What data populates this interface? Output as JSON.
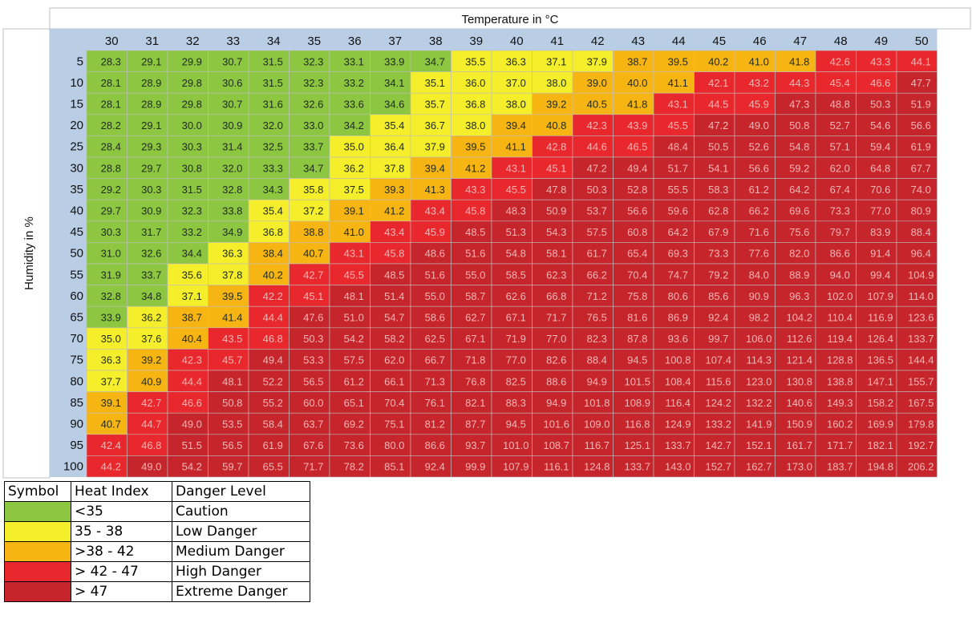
{
  "colors": {
    "green": "#8dc640",
    "yellow": "#f5ee2a",
    "orange": "#f7b514",
    "red": "#e8282c",
    "darkred": "#c6252b",
    "header": "#b9cde5",
    "grid": "#bfbfbf",
    "text_dark": "#1f2a1f",
    "text_light": "#f3b5b5"
  },
  "chart_data": {
    "type": "heatmap",
    "title": "Temperature in °C",
    "ylabel": "Humidity in %",
    "x": [
      30,
      31,
      32,
      33,
      34,
      35,
      36,
      37,
      38,
      39,
      40,
      41,
      42,
      43,
      44,
      45,
      46,
      47,
      48,
      49,
      50
    ],
    "y": [
      5,
      10,
      15,
      20,
      25,
      30,
      35,
      40,
      45,
      50,
      55,
      60,
      65,
      70,
      75,
      80,
      85,
      90,
      95,
      100
    ],
    "values": [
      [
        28.3,
        29.1,
        29.9,
        30.7,
        31.5,
        32.3,
        33.1,
        33.9,
        34.7,
        35.5,
        36.3,
        37.1,
        37.9,
        38.7,
        39.5,
        40.2,
        41.0,
        41.8,
        42.6,
        43.3,
        44.1
      ],
      [
        28.1,
        28.9,
        29.8,
        30.6,
        31.5,
        32.3,
        33.2,
        34.1,
        35.1,
        36.0,
        37.0,
        38.0,
        39.0,
        40.0,
        41.1,
        42.1,
        43.2,
        44.3,
        45.4,
        46.6,
        47.7
      ],
      [
        28.1,
        28.9,
        29.8,
        30.7,
        31.6,
        32.6,
        33.6,
        34.6,
        35.7,
        36.8,
        38.0,
        39.2,
        40.5,
        41.8,
        43.1,
        44.5,
        45.9,
        47.3,
        48.8,
        50.3,
        51.9
      ],
      [
        28.2,
        29.1,
        30.0,
        30.9,
        32.0,
        33.0,
        34.2,
        35.4,
        36.7,
        38.0,
        39.4,
        40.8,
        42.3,
        43.9,
        45.5,
        47.2,
        49.0,
        50.8,
        52.7,
        54.6,
        56.6
      ],
      [
        28.4,
        29.3,
        30.3,
        31.4,
        32.5,
        33.7,
        35.0,
        36.4,
        37.9,
        39.5,
        41.1,
        42.8,
        44.6,
        46.5,
        48.4,
        50.5,
        52.6,
        54.8,
        57.1,
        59.4,
        61.9
      ],
      [
        28.8,
        29.7,
        30.8,
        32.0,
        33.3,
        34.7,
        36.2,
        37.8,
        39.4,
        41.2,
        43.1,
        45.1,
        47.2,
        49.4,
        51.7,
        54.1,
        56.6,
        59.2,
        62.0,
        64.8,
        67.7
      ],
      [
        29.2,
        30.3,
        31.5,
        32.8,
        34.3,
        35.8,
        37.5,
        39.3,
        41.3,
        43.3,
        45.5,
        47.8,
        50.3,
        52.8,
        55.5,
        58.3,
        61.2,
        64.2,
        67.4,
        70.6,
        74.0
      ],
      [
        29.7,
        30.9,
        32.3,
        33.8,
        35.4,
        37.2,
        39.1,
        41.2,
        43.4,
        45.8,
        48.3,
        50.9,
        53.7,
        56.6,
        59.6,
        62.8,
        66.2,
        69.6,
        73.3,
        77.0,
        80.9
      ],
      [
        30.3,
        31.7,
        33.2,
        34.9,
        36.8,
        38.8,
        41.0,
        43.4,
        45.9,
        48.5,
        51.3,
        54.3,
        57.5,
        60.8,
        64.2,
        67.9,
        71.6,
        75.6,
        79.7,
        83.9,
        88.4
      ],
      [
        31.0,
        32.6,
        34.4,
        36.3,
        38.4,
        40.7,
        43.1,
        45.8,
        48.6,
        51.6,
        54.8,
        58.1,
        61.7,
        65.4,
        69.3,
        73.3,
        77.6,
        82.0,
        86.6,
        91.4,
        96.4
      ],
      [
        31.9,
        33.7,
        35.6,
        37.8,
        40.2,
        42.7,
        45.5,
        48.5,
        51.6,
        55.0,
        58.5,
        62.3,
        66.2,
        70.4,
        74.7,
        79.2,
        84.0,
        88.9,
        94.0,
        99.4,
        104.9
      ],
      [
        32.8,
        34.8,
        37.1,
        39.5,
        42.2,
        45.1,
        48.1,
        51.4,
        55.0,
        58.7,
        62.6,
        66.8,
        71.2,
        75.8,
        80.6,
        85.6,
        90.9,
        96.3,
        102.0,
        107.9,
        114.0
      ],
      [
        33.9,
        36.2,
        38.7,
        41.4,
        44.4,
        47.6,
        51.0,
        54.7,
        58.6,
        62.7,
        67.1,
        71.7,
        76.5,
        81.6,
        86.9,
        92.4,
        98.2,
        104.2,
        110.4,
        116.9,
        123.6
      ],
      [
        35.0,
        37.6,
        40.4,
        43.5,
        46.8,
        50.3,
        54.2,
        58.2,
        62.5,
        67.1,
        71.9,
        77.0,
        82.3,
        87.8,
        93.6,
        99.7,
        106.0,
        112.6,
        119.4,
        126.4,
        133.7
      ],
      [
        36.3,
        39.2,
        42.3,
        45.7,
        49.4,
        53.3,
        57.5,
        62.0,
        66.7,
        71.8,
        77.0,
        82.6,
        88.4,
        94.5,
        100.8,
        107.4,
        114.3,
        121.4,
        128.8,
        136.5,
        144.4
      ],
      [
        37.7,
        40.9,
        44.4,
        48.1,
        52.2,
        56.5,
        61.2,
        66.1,
        71.3,
        76.8,
        82.5,
        88.6,
        94.9,
        101.5,
        108.4,
        115.6,
        123.0,
        130.8,
        138.8,
        147.1,
        155.7
      ],
      [
        39.1,
        42.7,
        46.6,
        50.8,
        55.2,
        60.0,
        65.1,
        70.4,
        76.1,
        82.1,
        88.3,
        94.9,
        101.8,
        108.9,
        116.4,
        124.2,
        132.2,
        140.6,
        149.3,
        158.2,
        167.5
      ],
      [
        40.7,
        44.7,
        49.0,
        53.5,
        58.4,
        63.7,
        69.2,
        75.1,
        81.2,
        87.7,
        94.5,
        101.6,
        109.0,
        116.8,
        124.9,
        133.2,
        141.9,
        150.9,
        160.2,
        169.9,
        179.8
      ],
      [
        42.4,
        46.8,
        51.5,
        56.5,
        61.9,
        67.6,
        73.6,
        80.0,
        86.6,
        93.7,
        101.0,
        108.7,
        116.7,
        125.1,
        133.7,
        142.7,
        152.1,
        161.7,
        171.7,
        182.1,
        192.7
      ],
      [
        44.2,
        49.0,
        54.2,
        59.7,
        65.5,
        71.7,
        78.2,
        85.1,
        92.4,
        99.9,
        107.9,
        116.1,
        124.8,
        133.7,
        143.0,
        152.7,
        162.7,
        173.0,
        183.7,
        194.8,
        206.2
      ]
    ],
    "legend": {
      "headers": [
        "Symbol",
        "Heat Index",
        "Danger Level"
      ],
      "rows": [
        {
          "color": "#8dc640",
          "range": "<35",
          "level": "Caution"
        },
        {
          "color": "#f5ee2a",
          "range": "35 - 38",
          "level": "Low Danger"
        },
        {
          "color": "#f7b514",
          "range": ">38 - 42",
          "level": "Medium Danger"
        },
        {
          "color": "#e8282c",
          "range": "> 42 - 47",
          "level": "High Danger"
        },
        {
          "color": "#c6252b",
          "range": "> 47",
          "level": "Extreme Danger"
        }
      ]
    }
  }
}
